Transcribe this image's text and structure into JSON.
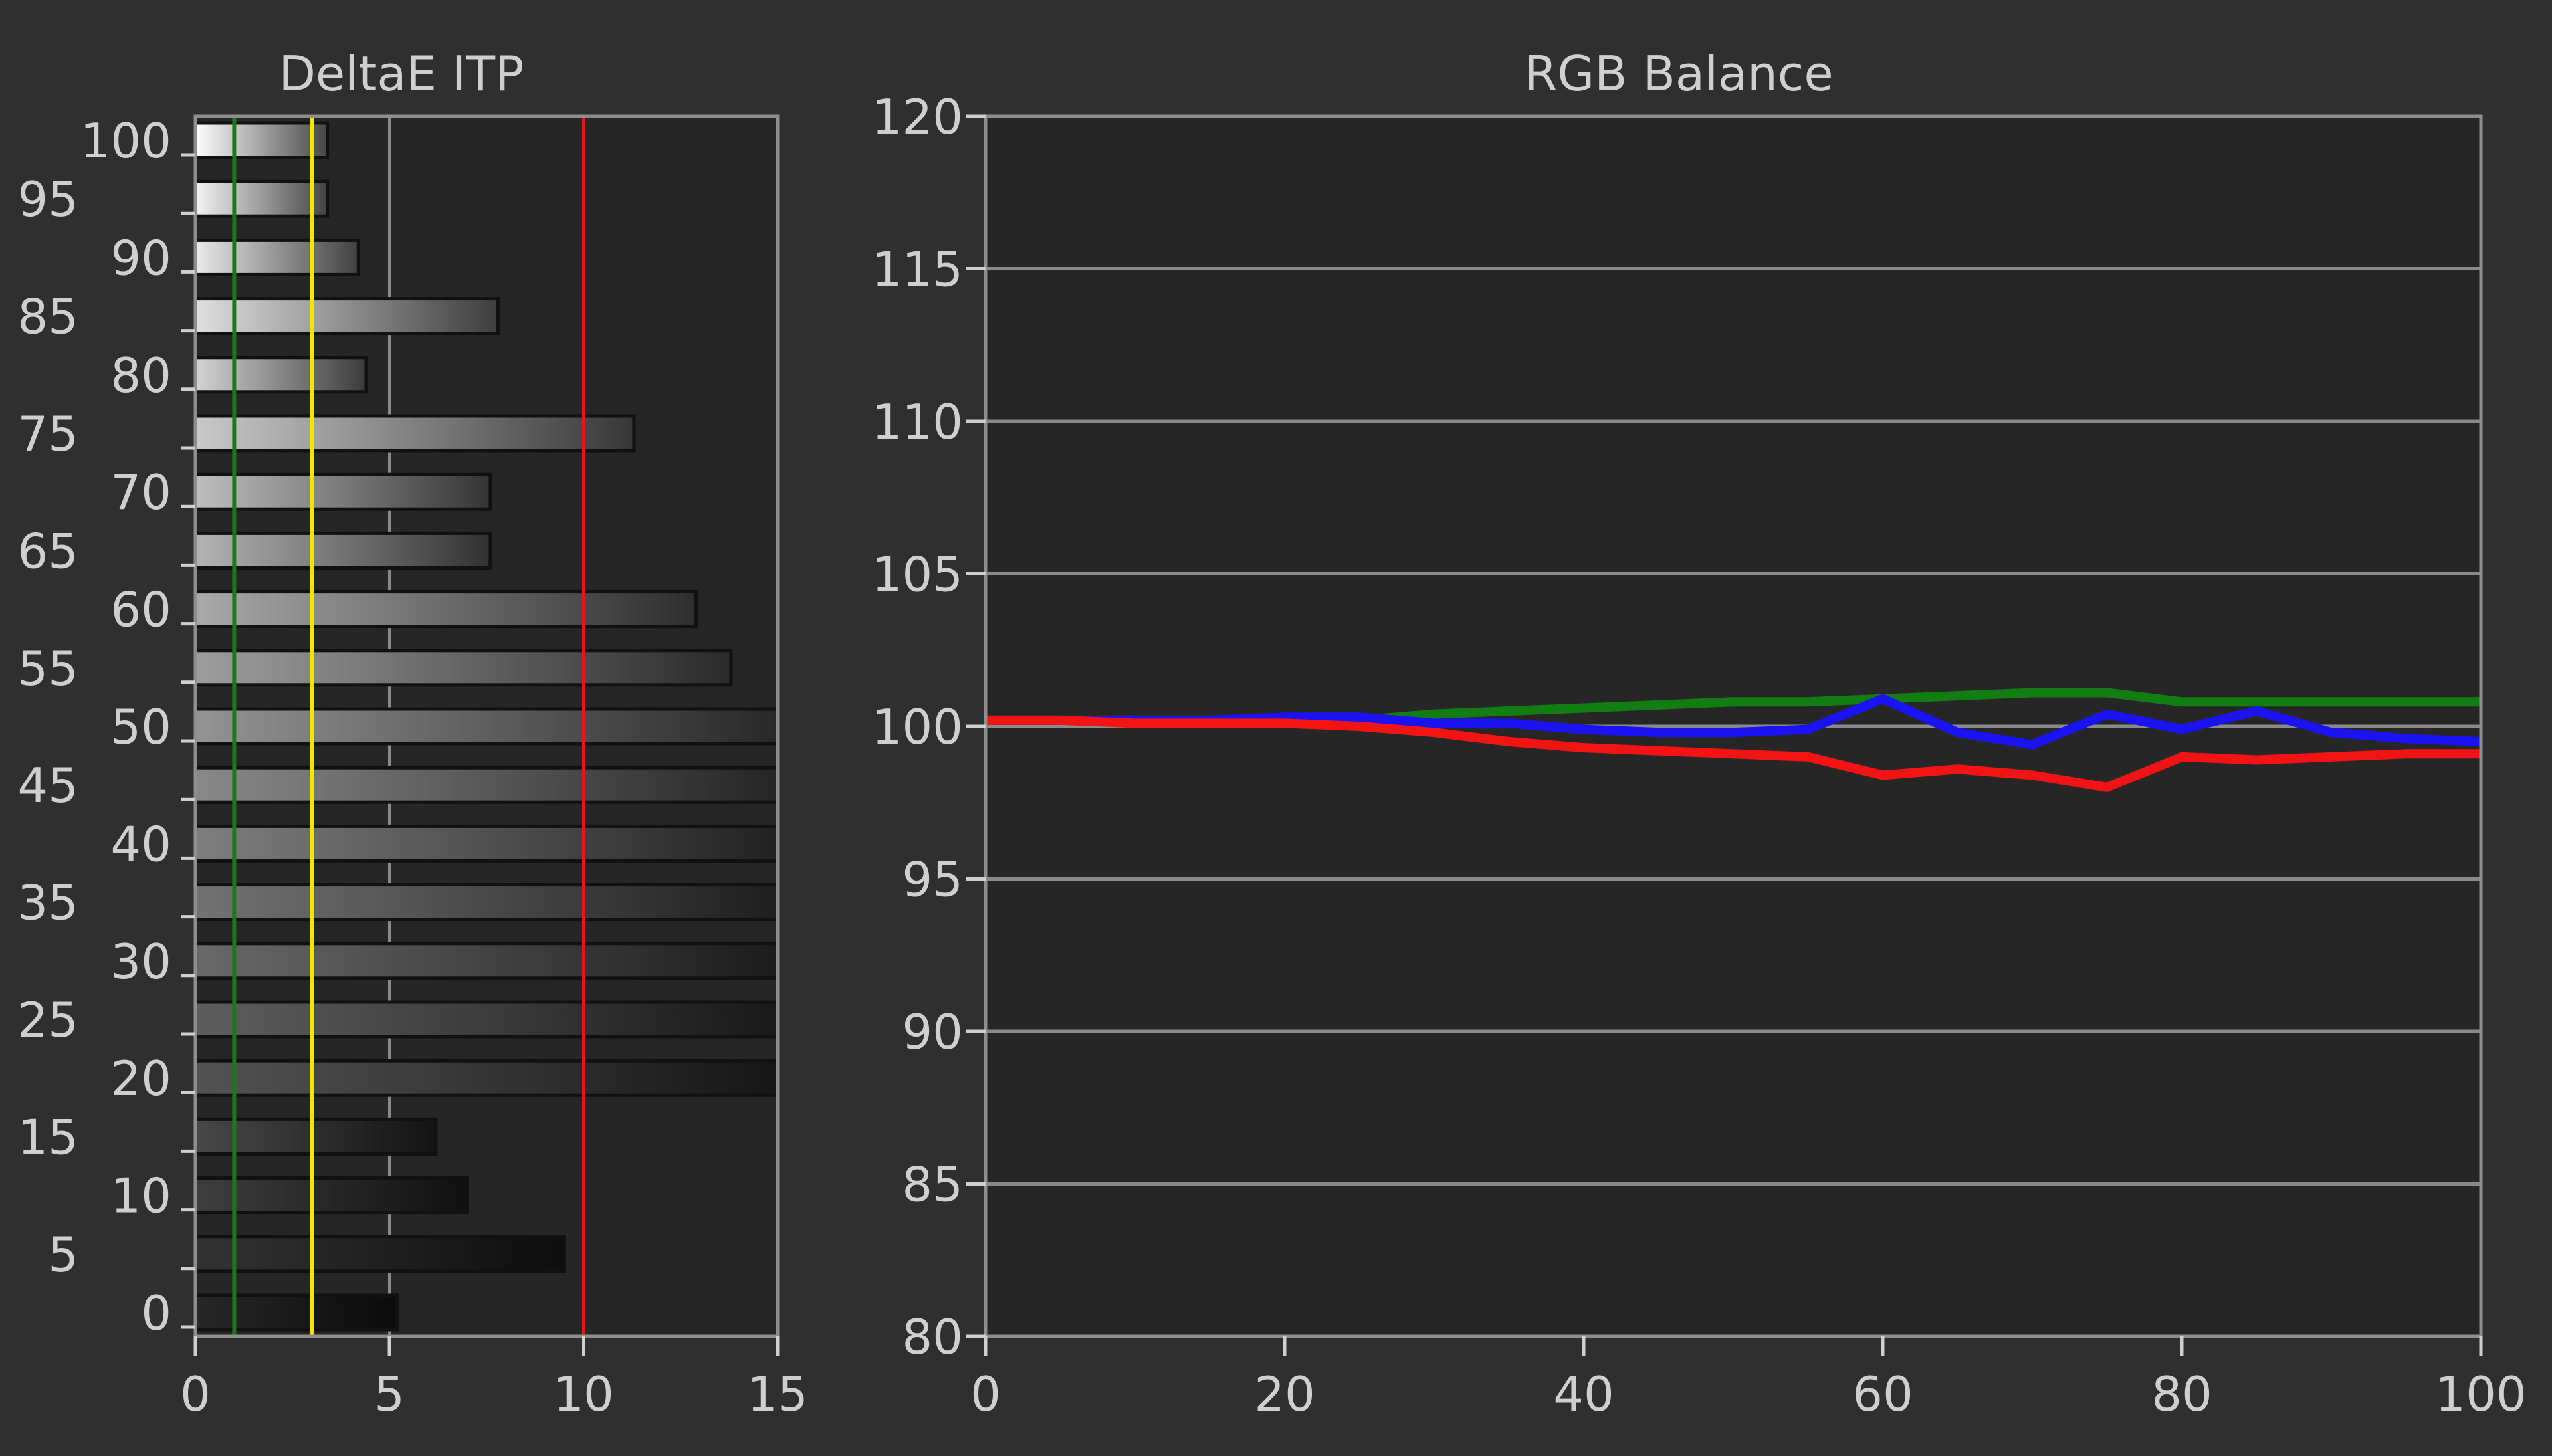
{
  "chart_data": [
    {
      "type": "bar",
      "title": "DeltaE ITP",
      "orientation": "horizontal",
      "categories": [
        0,
        5,
        10,
        15,
        20,
        25,
        30,
        35,
        40,
        45,
        50,
        55,
        60,
        65,
        70,
        75,
        80,
        85,
        90,
        95,
        100
      ],
      "category_ticks": [
        "0",
        "5",
        "10",
        "15",
        "20",
        "25",
        "30",
        "35",
        "40",
        "45",
        "50",
        "55",
        "60",
        "65",
        "70",
        "75",
        "80",
        "85",
        "90",
        "95",
        "100"
      ],
      "values": [
        5.2,
        9.5,
        7.0,
        6.2,
        15,
        15,
        15,
        15,
        15,
        15,
        15,
        13.8,
        12.9,
        7.6,
        7.6,
        11.3,
        4.4,
        7.8,
        4.2,
        3.4,
        3.4
      ],
      "xlim": [
        0,
        15
      ],
      "xticks": [
        "0",
        "5",
        "10",
        "15"
      ],
      "ylim": [
        0,
        100
      ],
      "reference_lines": [
        {
          "value": 1,
          "color": "#1a7a1a"
        },
        {
          "value": 3,
          "color": "#f2e600"
        },
        {
          "value": 10,
          "color": "#e01818"
        }
      ],
      "grid": true
    },
    {
      "type": "line",
      "title": "RGB Balance",
      "x": [
        0,
        5,
        10,
        15,
        20,
        25,
        30,
        35,
        40,
        45,
        50,
        55,
        60,
        65,
        70,
        75,
        80,
        85,
        90,
        95,
        100
      ],
      "xlim": [
        0,
        100
      ],
      "xticks": [
        "0",
        "20",
        "40",
        "60",
        "80",
        "100"
      ],
      "ylim": [
        80,
        120
      ],
      "yticks": [
        "80",
        "85",
        "90",
        "95",
        "100",
        "105",
        "110",
        "115",
        "120"
      ],
      "grid": true,
      "series": [
        {
          "color": "#127d12",
          "values": [
            100.2,
            100.2,
            100.2,
            100.2,
            100.2,
            100.2,
            100.4,
            100.5,
            100.6,
            100.7,
            100.8,
            100.8,
            100.9,
            101.0,
            101.1,
            101.1,
            100.8,
            100.8,
            100.8,
            100.8,
            100.8
          ]
        },
        {
          "color": "#1a12f0",
          "values": [
            100.2,
            100.2,
            100.2,
            100.2,
            100.3,
            100.3,
            100.1,
            100.1,
            99.9,
            99.8,
            99.8,
            99.9,
            100.9,
            99.8,
            99.4,
            100.4,
            99.9,
            100.5,
            99.8,
            99.6,
            99.5
          ]
        },
        {
          "color": "#f21414",
          "values": [
            100.2,
            100.2,
            100.1,
            100.1,
            100.1,
            100.0,
            99.8,
            99.5,
            99.3,
            99.2,
            99.1,
            99.0,
            98.4,
            98.6,
            98.4,
            98.0,
            99.0,
            98.9,
            99.0,
            99.1,
            99.1
          ]
        }
      ]
    }
  ]
}
